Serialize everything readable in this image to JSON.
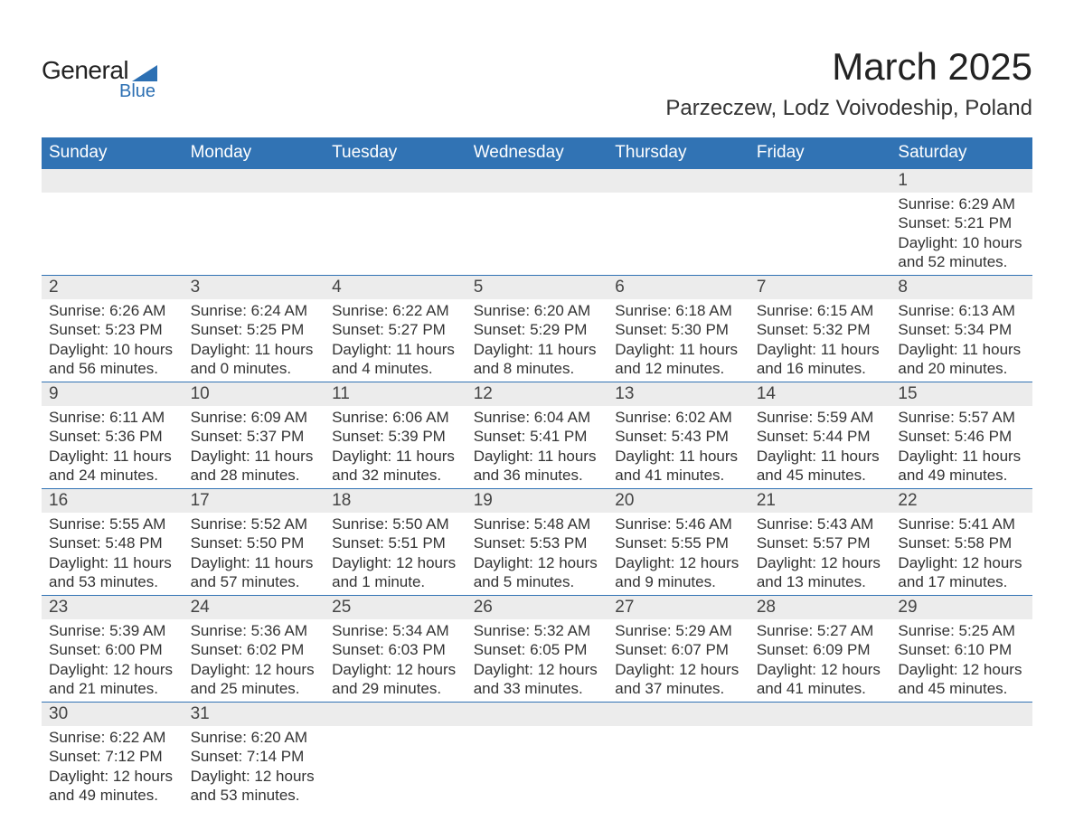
{
  "logo": {
    "main": "General",
    "sub": "Blue"
  },
  "title": {
    "month": "March 2025",
    "location": "Parzeczew, Lodz Voivodeship, Poland"
  },
  "calendar": {
    "type": "table",
    "header_bg": "#3173b4",
    "header_text_color": "#ffffff",
    "daynum_bg": "#ececec",
    "row_border_color": "#3173b4",
    "text_color": "#333333",
    "font_family": "Arial",
    "header_fontsize": 19,
    "daynum_fontsize": 19,
    "data_fontsize": 17,
    "columns": [
      "Sunday",
      "Monday",
      "Tuesday",
      "Wednesday",
      "Thursday",
      "Friday",
      "Saturday"
    ],
    "weeks": [
      [
        null,
        null,
        null,
        null,
        null,
        null,
        {
          "n": "1",
          "sunrise": "Sunrise: 6:29 AM",
          "sunset": "Sunset: 5:21 PM",
          "daylight1": "Daylight: 10 hours",
          "daylight2": "and 52 minutes."
        }
      ],
      [
        {
          "n": "2",
          "sunrise": "Sunrise: 6:26 AM",
          "sunset": "Sunset: 5:23 PM",
          "daylight1": "Daylight: 10 hours",
          "daylight2": "and 56 minutes."
        },
        {
          "n": "3",
          "sunrise": "Sunrise: 6:24 AM",
          "sunset": "Sunset: 5:25 PM",
          "daylight1": "Daylight: 11 hours",
          "daylight2": "and 0 minutes."
        },
        {
          "n": "4",
          "sunrise": "Sunrise: 6:22 AM",
          "sunset": "Sunset: 5:27 PM",
          "daylight1": "Daylight: 11 hours",
          "daylight2": "and 4 minutes."
        },
        {
          "n": "5",
          "sunrise": "Sunrise: 6:20 AM",
          "sunset": "Sunset: 5:29 PM",
          "daylight1": "Daylight: 11 hours",
          "daylight2": "and 8 minutes."
        },
        {
          "n": "6",
          "sunrise": "Sunrise: 6:18 AM",
          "sunset": "Sunset: 5:30 PM",
          "daylight1": "Daylight: 11 hours",
          "daylight2": "and 12 minutes."
        },
        {
          "n": "7",
          "sunrise": "Sunrise: 6:15 AM",
          "sunset": "Sunset: 5:32 PM",
          "daylight1": "Daylight: 11 hours",
          "daylight2": "and 16 minutes."
        },
        {
          "n": "8",
          "sunrise": "Sunrise: 6:13 AM",
          "sunset": "Sunset: 5:34 PM",
          "daylight1": "Daylight: 11 hours",
          "daylight2": "and 20 minutes."
        }
      ],
      [
        {
          "n": "9",
          "sunrise": "Sunrise: 6:11 AM",
          "sunset": "Sunset: 5:36 PM",
          "daylight1": "Daylight: 11 hours",
          "daylight2": "and 24 minutes."
        },
        {
          "n": "10",
          "sunrise": "Sunrise: 6:09 AM",
          "sunset": "Sunset: 5:37 PM",
          "daylight1": "Daylight: 11 hours",
          "daylight2": "and 28 minutes."
        },
        {
          "n": "11",
          "sunrise": "Sunrise: 6:06 AM",
          "sunset": "Sunset: 5:39 PM",
          "daylight1": "Daylight: 11 hours",
          "daylight2": "and 32 minutes."
        },
        {
          "n": "12",
          "sunrise": "Sunrise: 6:04 AM",
          "sunset": "Sunset: 5:41 PM",
          "daylight1": "Daylight: 11 hours",
          "daylight2": "and 36 minutes."
        },
        {
          "n": "13",
          "sunrise": "Sunrise: 6:02 AM",
          "sunset": "Sunset: 5:43 PM",
          "daylight1": "Daylight: 11 hours",
          "daylight2": "and 41 minutes."
        },
        {
          "n": "14",
          "sunrise": "Sunrise: 5:59 AM",
          "sunset": "Sunset: 5:44 PM",
          "daylight1": "Daylight: 11 hours",
          "daylight2": "and 45 minutes."
        },
        {
          "n": "15",
          "sunrise": "Sunrise: 5:57 AM",
          "sunset": "Sunset: 5:46 PM",
          "daylight1": "Daylight: 11 hours",
          "daylight2": "and 49 minutes."
        }
      ],
      [
        {
          "n": "16",
          "sunrise": "Sunrise: 5:55 AM",
          "sunset": "Sunset: 5:48 PM",
          "daylight1": "Daylight: 11 hours",
          "daylight2": "and 53 minutes."
        },
        {
          "n": "17",
          "sunrise": "Sunrise: 5:52 AM",
          "sunset": "Sunset: 5:50 PM",
          "daylight1": "Daylight: 11 hours",
          "daylight2": "and 57 minutes."
        },
        {
          "n": "18",
          "sunrise": "Sunrise: 5:50 AM",
          "sunset": "Sunset: 5:51 PM",
          "daylight1": "Daylight: 12 hours",
          "daylight2": "and 1 minute."
        },
        {
          "n": "19",
          "sunrise": "Sunrise: 5:48 AM",
          "sunset": "Sunset: 5:53 PM",
          "daylight1": "Daylight: 12 hours",
          "daylight2": "and 5 minutes."
        },
        {
          "n": "20",
          "sunrise": "Sunrise: 5:46 AM",
          "sunset": "Sunset: 5:55 PM",
          "daylight1": "Daylight: 12 hours",
          "daylight2": "and 9 minutes."
        },
        {
          "n": "21",
          "sunrise": "Sunrise: 5:43 AM",
          "sunset": "Sunset: 5:57 PM",
          "daylight1": "Daylight: 12 hours",
          "daylight2": "and 13 minutes."
        },
        {
          "n": "22",
          "sunrise": "Sunrise: 5:41 AM",
          "sunset": "Sunset: 5:58 PM",
          "daylight1": "Daylight: 12 hours",
          "daylight2": "and 17 minutes."
        }
      ],
      [
        {
          "n": "23",
          "sunrise": "Sunrise: 5:39 AM",
          "sunset": "Sunset: 6:00 PM",
          "daylight1": "Daylight: 12 hours",
          "daylight2": "and 21 minutes."
        },
        {
          "n": "24",
          "sunrise": "Sunrise: 5:36 AM",
          "sunset": "Sunset: 6:02 PM",
          "daylight1": "Daylight: 12 hours",
          "daylight2": "and 25 minutes."
        },
        {
          "n": "25",
          "sunrise": "Sunrise: 5:34 AM",
          "sunset": "Sunset: 6:03 PM",
          "daylight1": "Daylight: 12 hours",
          "daylight2": "and 29 minutes."
        },
        {
          "n": "26",
          "sunrise": "Sunrise: 5:32 AM",
          "sunset": "Sunset: 6:05 PM",
          "daylight1": "Daylight: 12 hours",
          "daylight2": "and 33 minutes."
        },
        {
          "n": "27",
          "sunrise": "Sunrise: 5:29 AM",
          "sunset": "Sunset: 6:07 PM",
          "daylight1": "Daylight: 12 hours",
          "daylight2": "and 37 minutes."
        },
        {
          "n": "28",
          "sunrise": "Sunrise: 5:27 AM",
          "sunset": "Sunset: 6:09 PM",
          "daylight1": "Daylight: 12 hours",
          "daylight2": "and 41 minutes."
        },
        {
          "n": "29",
          "sunrise": "Sunrise: 5:25 AM",
          "sunset": "Sunset: 6:10 PM",
          "daylight1": "Daylight: 12 hours",
          "daylight2": "and 45 minutes."
        }
      ],
      [
        {
          "n": "30",
          "sunrise": "Sunrise: 6:22 AM",
          "sunset": "Sunset: 7:12 PM",
          "daylight1": "Daylight: 12 hours",
          "daylight2": "and 49 minutes."
        },
        {
          "n": "31",
          "sunrise": "Sunrise: 6:20 AM",
          "sunset": "Sunset: 7:14 PM",
          "daylight1": "Daylight: 12 hours",
          "daylight2": "and 53 minutes."
        },
        null,
        null,
        null,
        null,
        null
      ]
    ]
  }
}
